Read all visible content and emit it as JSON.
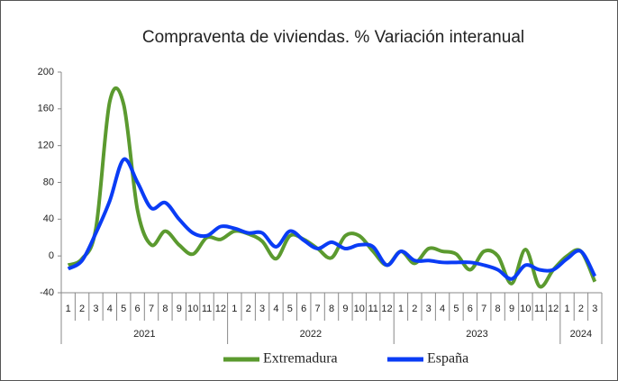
{
  "chart_data": {
    "type": "line",
    "title": "Compraventa  de viviendas.  % Variación  interanual",
    "categories": [
      "1",
      "2",
      "3",
      "4",
      "5",
      "6",
      "7",
      "8",
      "9",
      "10",
      "11",
      "12",
      "1",
      "2",
      "3",
      "4",
      "5",
      "6",
      "7",
      "8",
      "9",
      "10",
      "11",
      "12",
      "1",
      "2",
      "3",
      "4",
      "5",
      "6",
      "7",
      "8",
      "9",
      "10",
      "11",
      "12",
      "1",
      "2",
      "3"
    ],
    "years": [
      "2021",
      "2022",
      "2023",
      "2024"
    ],
    "series": [
      {
        "name": "Extremadura",
        "color": "#5b9a2f",
        "values": [
          -10,
          -3,
          30,
          168,
          165,
          50,
          12,
          27,
          12,
          2,
          20,
          18,
          27,
          24,
          16,
          -3,
          22,
          18,
          8,
          -2,
          22,
          22,
          5,
          -10,
          5,
          -8,
          8,
          5,
          2,
          -15,
          5,
          0,
          -30,
          7,
          -33,
          -15,
          0,
          5,
          -28
        ]
      },
      {
        "name": "España",
        "color": "#0a3cf5",
        "values": [
          -14,
          -5,
          25,
          60,
          105,
          80,
          52,
          58,
          40,
          25,
          22,
          32,
          30,
          25,
          25,
          10,
          27,
          17,
          8,
          15,
          8,
          12,
          10,
          -10,
          5,
          -5,
          -5,
          -7,
          -7,
          -7,
          -10,
          -15,
          -25,
          -10,
          -15,
          -15,
          -3,
          5,
          -22
        ]
      }
    ],
    "ylim": [
      -40,
      200
    ],
    "yticks": [
      -40,
      0,
      40,
      80,
      120,
      160,
      200
    ],
    "legend": "bottom"
  }
}
